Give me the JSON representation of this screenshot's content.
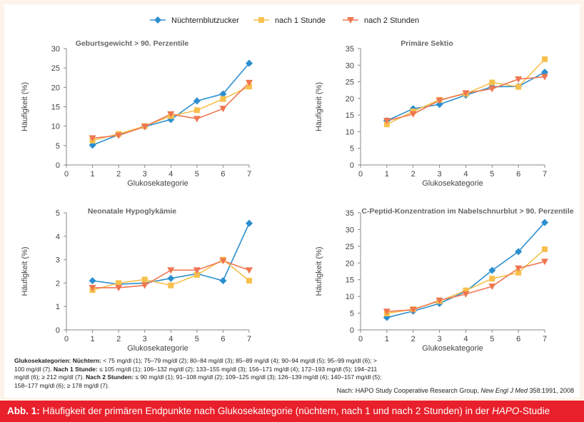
{
  "legend": [
    {
      "name": "Nüchternblutzucker",
      "color": "#2b8fcf",
      "marker": "diamond"
    },
    {
      "name": "nach 1 Stunde",
      "color": "#f7c04d",
      "marker": "square"
    },
    {
      "name": "nach 2 Stunden",
      "color": "#ef7650",
      "marker": "triangle-down"
    }
  ],
  "chart_data": [
    {
      "type": "line",
      "title": "Geburtsgewicht > 90. Perzentile",
      "xlabel": "Glukosekategorie",
      "ylabel": "Häufigkeit (%)",
      "xlim": [
        0,
        7
      ],
      "ylim": [
        0,
        30
      ],
      "yticks": [
        0,
        5,
        10,
        15,
        20,
        25,
        30
      ],
      "x": [
        1,
        2,
        3,
        4,
        5,
        6,
        7
      ],
      "series": [
        {
          "name": "Nüchternblutzucker",
          "values": [
            5.1,
            7.8,
            9.9,
            11.7,
            16.5,
            18.3,
            26.2
          ]
        },
        {
          "name": "nach 1 Stunde",
          "values": [
            6.3,
            8.0,
            10.0,
            12.6,
            14.1,
            17.0,
            20.2
          ]
        },
        {
          "name": "nach 2 Stunden",
          "values": [
            6.9,
            7.6,
            9.9,
            13.1,
            11.9,
            14.5,
            21.2
          ]
        }
      ]
    },
    {
      "type": "line",
      "title": "Primäre Sektio",
      "xlabel": "Glukosekategorie",
      "ylabel": "Häufigkeit (%)",
      "xlim": [
        0,
        7
      ],
      "ylim": [
        0,
        35
      ],
      "yticks": [
        0,
        5,
        10,
        15,
        20,
        25,
        30,
        35
      ],
      "x": [
        1,
        2,
        3,
        4,
        5,
        6,
        7
      ],
      "series": [
        {
          "name": "Nüchternblutzucker",
          "values": [
            13.3,
            16.9,
            18.2,
            21.0,
            23.5,
            23.6,
            27.9
          ]
        },
        {
          "name": "nach 1 Stunde",
          "values": [
            12.2,
            16.1,
            19.6,
            21.4,
            24.8,
            23.5,
            31.8
          ]
        },
        {
          "name": "nach 2 Stunden",
          "values": [
            13.3,
            15.3,
            19.4,
            21.6,
            22.9,
            25.8,
            26.5
          ]
        }
      ]
    },
    {
      "type": "line",
      "title": "Neonatale Hypoglykämie",
      "xlabel": "Glukosekategorie",
      "ylabel": "Häufigkeit (%)",
      "xlim": [
        0,
        7
      ],
      "ylim": [
        0,
        5
      ],
      "yticks": [
        0,
        1,
        2,
        3,
        4,
        5
      ],
      "x": [
        1,
        2,
        3,
        4,
        5,
        6,
        7
      ],
      "series": [
        {
          "name": "Nüchternblutzucker",
          "values": [
            2.1,
            1.95,
            2.0,
            2.2,
            2.4,
            2.1,
            4.55
          ]
        },
        {
          "name": "nach 1 Stunde",
          "values": [
            1.7,
            2.0,
            2.15,
            1.9,
            2.35,
            3.0,
            2.1
          ]
        },
        {
          "name": "nach 2 Stunden",
          "values": [
            1.8,
            1.8,
            1.9,
            2.55,
            2.55,
            2.95,
            2.55
          ]
        }
      ]
    },
    {
      "type": "line",
      "title": "C-Peptid-Konzentration im Nabelschnurblut > 90. Perzentile",
      "xlabel": "Glukosekategorie",
      "ylabel": "Häufigkeit (%)",
      "xlim": [
        0,
        7
      ],
      "ylim": [
        0,
        35
      ],
      "yticks": [
        0,
        5,
        10,
        15,
        20,
        25,
        30,
        35
      ],
      "x": [
        1,
        2,
        3,
        4,
        5,
        6,
        7
      ],
      "series": [
        {
          "name": "Nüchternblutzucker",
          "values": [
            3.7,
            5.6,
            7.9,
            11.5,
            17.8,
            23.4,
            32.1
          ]
        },
        {
          "name": "nach 1 Stunde",
          "values": [
            4.9,
            6.2,
            8.6,
            11.8,
            15.3,
            17.1,
            24.1
          ]
        },
        {
          "name": "nach 2 Stunden",
          "values": [
            5.5,
            6.0,
            8.8,
            10.7,
            13.0,
            18.4,
            20.4
          ]
        }
      ]
    }
  ],
  "footnote": {
    "heading_fasting": "Glukosekategorien: Nüchtern:",
    "text_fasting": "< 75 mg/dl (1); 75–79 mg/dl (2); 80–84 mg/dl (3); 85–89 mg/dl (4); 90–94 mg/dl (5); 95–99 mg/dl (6); > 100 mg/dl (7).",
    "heading_1h": "Nach 1 Stunde:",
    "text_1h": "≤ 105 mg/dl (1); 106–132 mg/dl (2); 133–155 mg/dl (3); 156–171 mg/dl (4); 172–193 mg/dl (5); 194–211 mg/dl (6); ≥ 212 mg/dl (7).",
    "heading_2h": "Nach 2 Stunden:",
    "text_2h": "≤ 90 mg/dl (1); 91–108 mg/dl (2); 109–125 mg/dl (3); 126–139 mg/dl (4); 140–157 mg/dl (5); 158–177 mg/dl (6); ≥ 178 mg/dl (7)."
  },
  "source": {
    "prefix": "Nach: HAPO Study Cooperative Research Group, ",
    "journal": "New Engl J Med",
    "suffix": " 358:1991, 2008"
  },
  "caption": {
    "label": "Abb. 1:",
    "text_before": " Häufigkeit der primären Endpunkte nach Glukosekategorie (nüchtern, nach 1 und nach 2 Stunden) in der ",
    "study": "HAPO",
    "text_after": "-Studie"
  },
  "colors": {
    "background": "#fdf3ea",
    "panel": "#ffffff",
    "caption_bar": "#e8202b",
    "axis_text": "#444444"
  }
}
